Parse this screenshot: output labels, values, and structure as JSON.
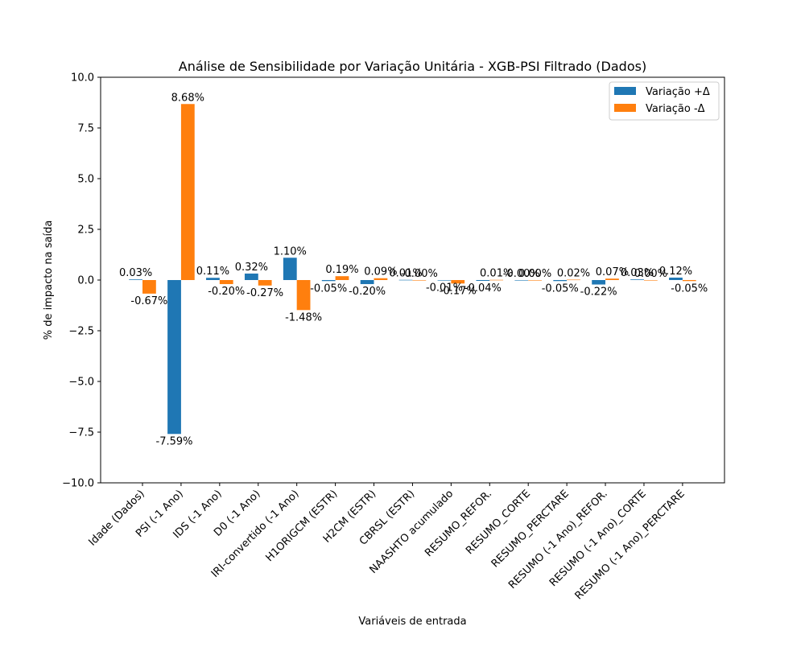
{
  "chart_data": {
    "type": "bar",
    "title": "Análise de Sensibilidade por Variação Unitária - XGB-PSI Filtrado (Dados)",
    "xlabel": "Variáveis de entrada",
    "ylabel": "% de impacto na saída",
    "ylim": [
      -10.0,
      10.0
    ],
    "yticks": [
      "−10.0",
      "−7.5",
      "−5.0",
      "−2.5",
      "0.0",
      "2.5",
      "5.0",
      "7.5",
      "10.0"
    ],
    "grid": false,
    "legend_position": "top-right",
    "categories": [
      "Idade (Dados)",
      "PSI (-1 Ano)",
      "IDS (-1 Ano)",
      "D0 (-1 Ano)",
      "IRI-convertido (-1 Ano)",
      "H1ORIGCM (ESTR)",
      "H2CM (ESTR)",
      "CBRSL (ESTR)",
      "NAASHTO acumulado",
      "RESUMO_REFOR.",
      "RESUMO_CORTE",
      "RESUMO_PERCTARE",
      "RESUMO (-1 Ano)_REFOR.",
      "RESUMO (-1 Ano)_CORTE",
      "RESUMO (-1 Ano)_PERCTARE"
    ],
    "series": [
      {
        "name": "Variação +Δ",
        "color": "#1f77b4",
        "values": [
          0.03,
          -7.59,
          0.11,
          0.32,
          1.1,
          -0.05,
          -0.2,
          0.01,
          -0.01,
          -0.04,
          -0.0,
          -0.05,
          -0.22,
          0.03,
          0.12
        ],
        "labels": [
          "0.03%",
          "-7.59%",
          "0.11%",
          "0.32%",
          "1.10%",
          "-0.05%",
          "-0.20%",
          "0.01%",
          "-0.01%",
          "-0.04%",
          "-0.00%",
          "-0.05%",
          "-0.22%",
          "0.03%",
          "0.12%"
        ]
      },
      {
        "name": "Variação -Δ",
        "color": "#ff7f0e",
        "values": [
          -0.67,
          8.68,
          -0.2,
          -0.27,
          -1.48,
          0.19,
          0.09,
          -0.0,
          -0.17,
          0.01,
          0.0,
          0.02,
          0.07,
          0.0,
          -0.05
        ],
        "labels": [
          "-0.67%",
          "8.68%",
          "-0.20%",
          "-0.27%",
          "-1.48%",
          "0.19%",
          "0.09%",
          "-0.00%",
          "-0.17%",
          "0.01%",
          "0.00%",
          "0.02%",
          "0.07%",
          "0.00%",
          "-0.05%"
        ]
      }
    ]
  }
}
